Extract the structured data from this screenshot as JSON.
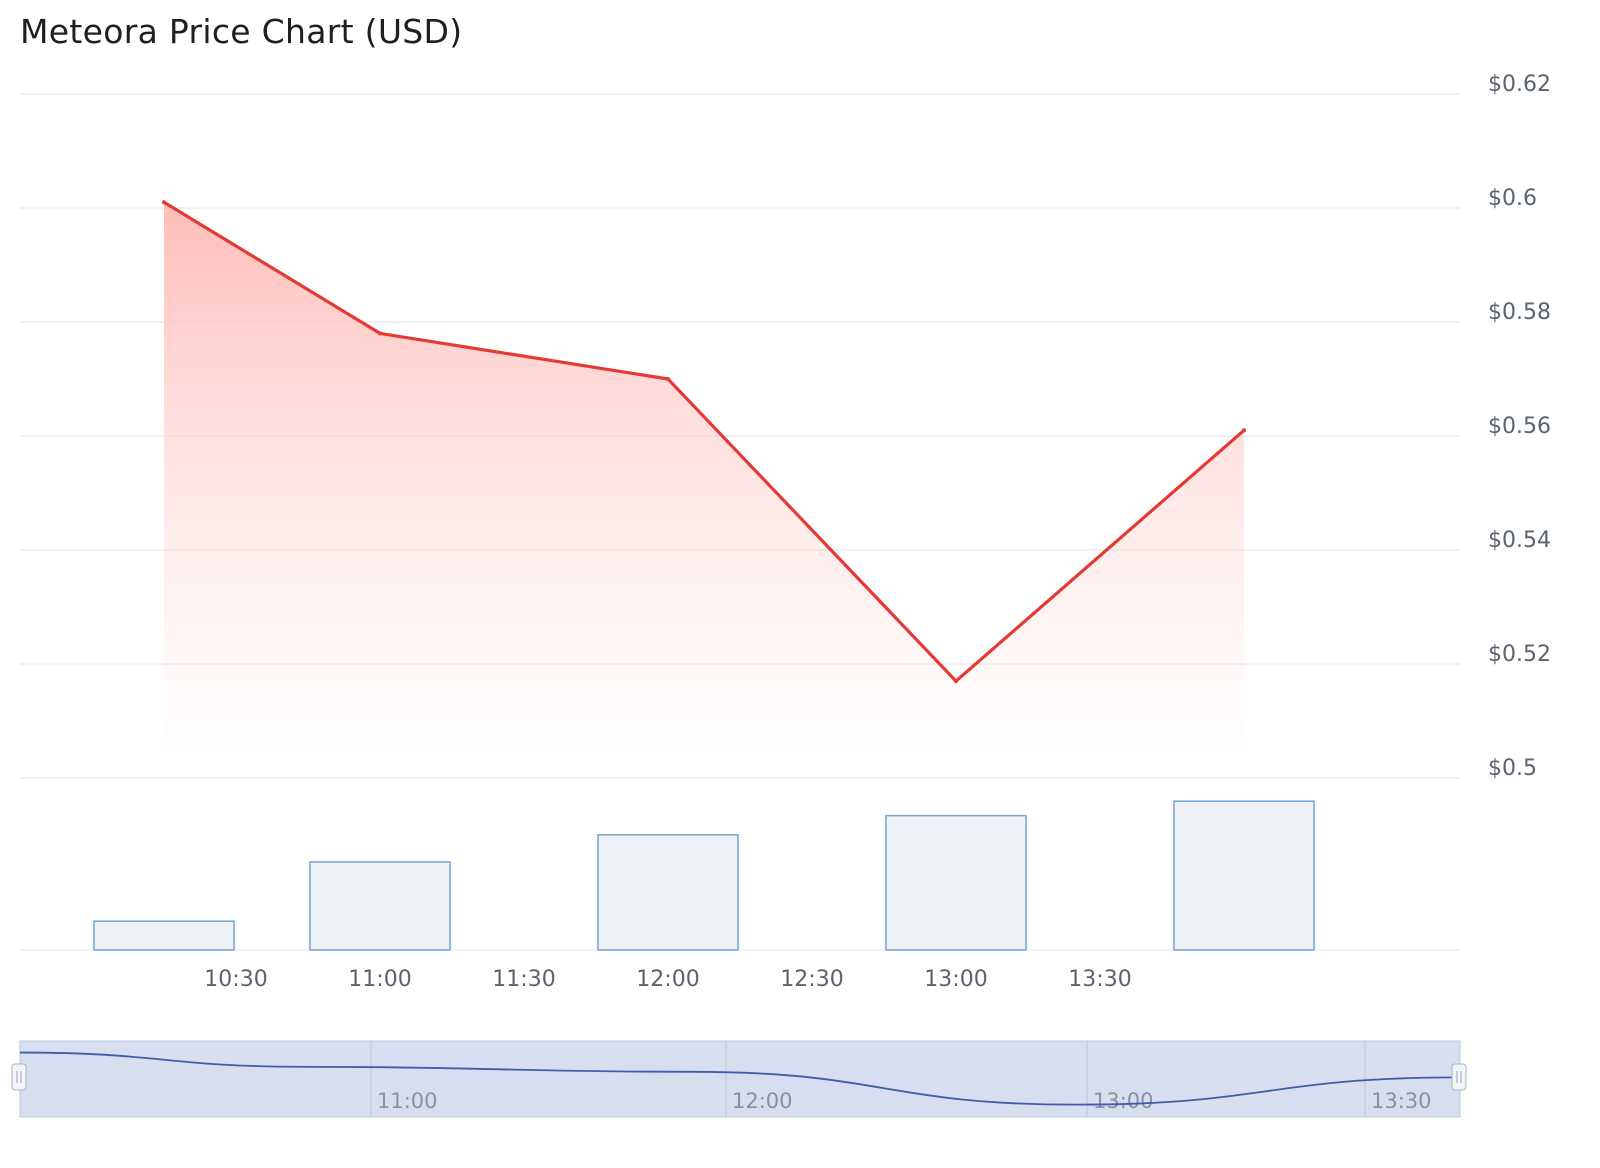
{
  "title": "Meteora Price Chart (USD)",
  "chart_data": {
    "type": "line",
    "title": "Meteora Price Chart (USD)",
    "series": [
      {
        "x": [
          "10:15",
          "11:00",
          "12:00",
          "13:00",
          "14:00"
        ],
        "values": [
          0.601,
          0.578,
          0.57,
          0.517,
          0.561
        ]
      }
    ],
    "volume": {
      "type": "bar",
      "x": [
        "10:15",
        "11:00",
        "12:00",
        "13:00",
        "14:00"
      ],
      "values": [
        18,
        55,
        72,
        84,
        93
      ]
    },
    "ylim": [
      0.5,
      0.62
    ],
    "y_ticks": [
      0.62,
      0.6,
      0.58,
      0.56,
      0.54,
      0.52,
      0.5
    ],
    "y_tick_labels": [
      "$0.62",
      "$0.6",
      "$0.58",
      "$0.56",
      "$0.54",
      "$0.52",
      "$0.5"
    ],
    "x_ticks": [
      "10:30",
      "11:00",
      "11:30",
      "12:00",
      "12:30",
      "13:00",
      "13:30"
    ],
    "navigator_ticks": [
      "11:00",
      "12:00",
      "13:00",
      "13:30"
    ],
    "grid": true,
    "y_axis_position": "right",
    "colors": {
      "line": "#e53935",
      "area_top": "#ffb3b0",
      "volume_fill": "#eef2f6",
      "volume_stroke": "#7aaad6",
      "navigator_fill": "#d6deef",
      "navigator_line": "#3d5ea8"
    }
  }
}
